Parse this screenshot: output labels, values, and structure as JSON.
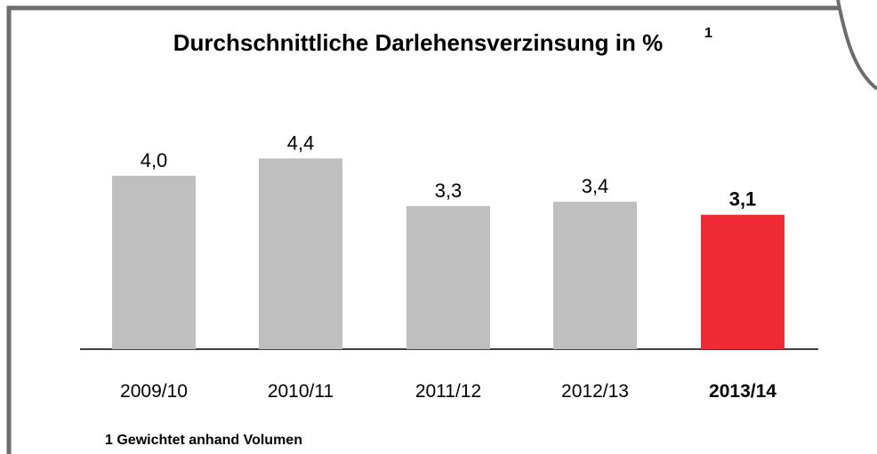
{
  "chart_data": {
    "type": "bar",
    "title": "Durchschnittliche Darlehensverzinsung in %",
    "title_superscript": "1",
    "categories": [
      "2009/10",
      "2010/11",
      "2011/12",
      "2012/13",
      "2013/14"
    ],
    "values": [
      4.0,
      4.4,
      3.3,
      3.4,
      3.1
    ],
    "value_labels": [
      "4,0",
      "4,4",
      "3,3",
      "3,4",
      "3,1"
    ],
    "colors": [
      "#bfbfbf",
      "#bfbfbf",
      "#bfbfbf",
      "#bfbfbf",
      "#ee2a35"
    ],
    "bold": [
      false,
      false,
      false,
      false,
      true
    ],
    "ylim": [
      0,
      5
    ],
    "footnote": "1 Gewichtet anhand Volumen"
  }
}
